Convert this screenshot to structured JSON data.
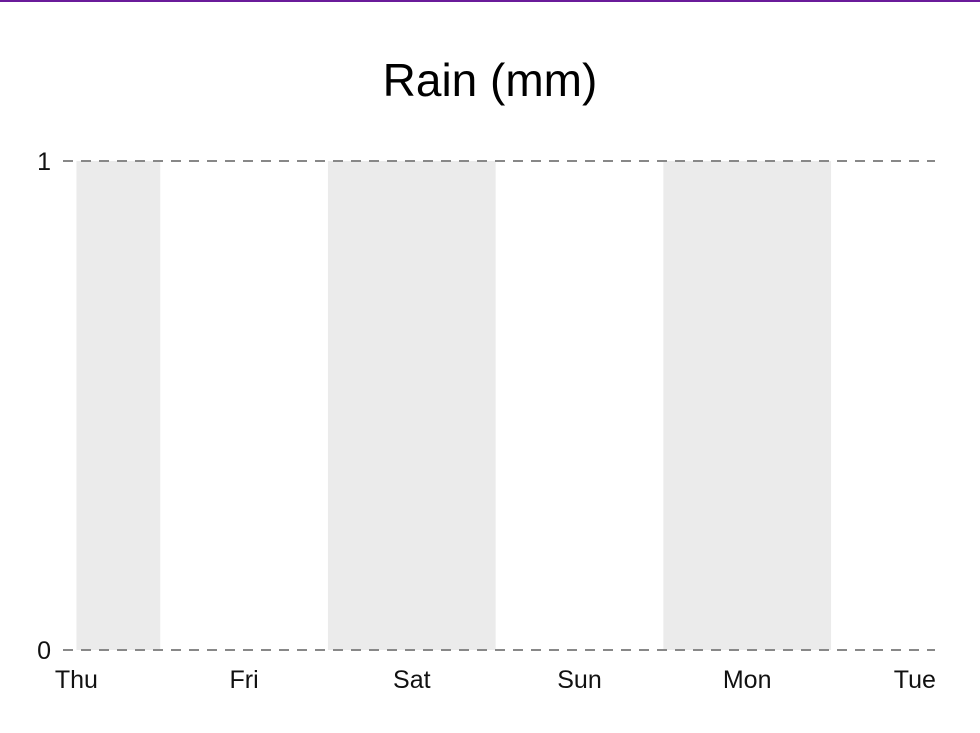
{
  "colors": {
    "accent_rule": "#6a1b9a",
    "bar": "#ebebeb",
    "grid": "#888888",
    "text": "#111111"
  },
  "chart_data": {
    "type": "bar",
    "title": "Rain (mm)",
    "categories": [
      "Thu",
      "Fri",
      "Sat",
      "Sun",
      "Mon",
      "Tue"
    ],
    "bars": [
      {
        "start": 0.0,
        "end": 0.5,
        "value": 1
      },
      {
        "start": 1.5,
        "end": 2.5,
        "value": 1
      },
      {
        "start": 3.5,
        "end": 4.5,
        "value": 1
      }
    ],
    "xlim": [
      -0.08,
      5.12
    ],
    "ylim": [
      0,
      1
    ],
    "yticks": [
      0,
      1
    ],
    "grid": true,
    "legend": "none",
    "xlabel": "",
    "ylabel": ""
  }
}
